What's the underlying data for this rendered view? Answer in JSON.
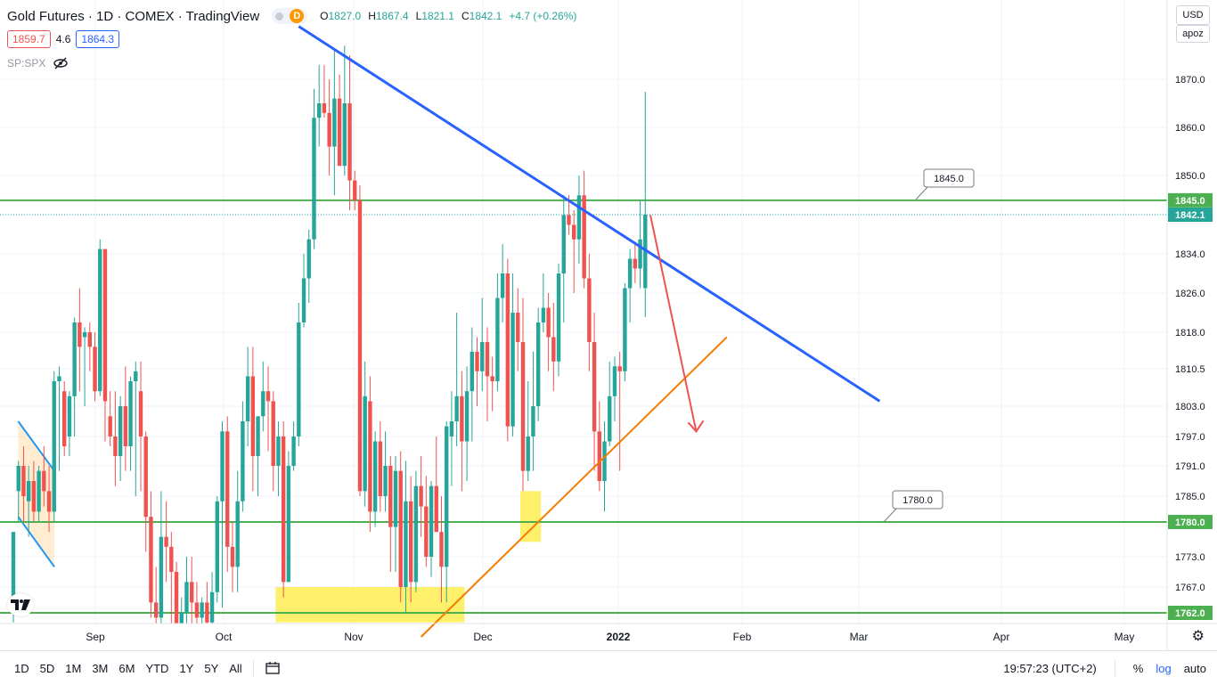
{
  "header": {
    "title": "Gold Futures · 1D · COMEX · TradingView",
    "market_badge": "D",
    "ohlc": [
      {
        "k": "O",
        "v": "1827.0"
      },
      {
        "k": "H",
        "v": "1867.4"
      },
      {
        "k": "L",
        "v": "1821.1"
      },
      {
        "k": "C",
        "v": "1842.1"
      },
      {
        "k": "",
        "v": "+4.7 (+0.26%)"
      }
    ],
    "sell": "1859.7",
    "spread": "4.6",
    "buy": "1864.3",
    "compare_symbol": "SP:SPX"
  },
  "toolbar_right": {
    "currency": "USD",
    "scale_mode": "apoz"
  },
  "bottom": {
    "ranges": [
      "1D",
      "5D",
      "1M",
      "3M",
      "6M",
      "YTD",
      "1Y",
      "5Y",
      "All"
    ],
    "time": "19:57:23 (UTC+2)",
    "percent": "%",
    "log": "log",
    "auto": "auto"
  },
  "chart_data": {
    "type": "candlestick",
    "y_ticks": [
      1870.0,
      1860.0,
      1850.0,
      1842.1,
      1834.0,
      1826.0,
      1818.0,
      1810.5,
      1803.0,
      1797.0,
      1791.0,
      1785.0,
      1780.0,
      1773.0,
      1767.0,
      1762.0
    ],
    "x_ticks": [
      "Sep",
      "Oct",
      "Nov",
      "Dec",
      "2022",
      "Feb",
      "Mar",
      "Apr",
      "May"
    ],
    "ylim": [
      1760,
      1880
    ],
    "price_labels": [
      {
        "value": 1845.0,
        "text": "1845.0",
        "color": "#4caf50"
      },
      {
        "value": 1842.1,
        "text": "1842.1",
        "color": "#26a69a"
      },
      {
        "value": 1780.0,
        "text": "1780.0",
        "color": "#4caf50"
      },
      {
        "value": 1762.0,
        "text": "1762.0",
        "color": "#4caf50"
      }
    ],
    "annotations": [
      {
        "text": "1845.0",
        "price": 1845.0
      },
      {
        "text": "1780.0",
        "price": 1780.0
      }
    ],
    "horizontal_levels": [
      1845.0,
      1780.0,
      1762.0
    ],
    "candles": [
      {
        "o": 1765,
        "h": 1778,
        "l": 1760,
        "c": 1778
      },
      {
        "o": 1786,
        "h": 1792,
        "l": 1780,
        "c": 1791
      },
      {
        "o": 1791,
        "h": 1795,
        "l": 1780,
        "c": 1785
      },
      {
        "o": 1784,
        "h": 1791,
        "l": 1777,
        "c": 1788
      },
      {
        "o": 1788,
        "h": 1792,
        "l": 1780,
        "c": 1782
      },
      {
        "o": 1782,
        "h": 1791,
        "l": 1780,
        "c": 1790
      },
      {
        "o": 1790,
        "h": 1795,
        "l": 1783,
        "c": 1786
      },
      {
        "o": 1786,
        "h": 1791,
        "l": 1778,
        "c": 1782
      },
      {
        "o": 1782,
        "h": 1810,
        "l": 1780,
        "c": 1808
      },
      {
        "o": 1808,
        "h": 1811,
        "l": 1790,
        "c": 1809
      },
      {
        "o": 1806,
        "h": 1808,
        "l": 1793,
        "c": 1795
      },
      {
        "o": 1797,
        "h": 1806,
        "l": 1793,
        "c": 1805
      },
      {
        "o": 1805,
        "h": 1821,
        "l": 1797,
        "c": 1820
      },
      {
        "o": 1820,
        "h": 1827,
        "l": 1806,
        "c": 1815
      },
      {
        "o": 1817,
        "h": 1819,
        "l": 1803,
        "c": 1818
      },
      {
        "o": 1818,
        "h": 1820,
        "l": 1810,
        "c": 1815
      },
      {
        "o": 1815,
        "h": 1818,
        "l": 1804,
        "c": 1806
      },
      {
        "o": 1806,
        "h": 1837,
        "l": 1805,
        "c": 1835
      },
      {
        "o": 1835,
        "h": 1835,
        "l": 1796,
        "c": 1804
      },
      {
        "o": 1801,
        "h": 1806,
        "l": 1795,
        "c": 1797
      },
      {
        "o": 1797,
        "h": 1806,
        "l": 1787,
        "c": 1793
      },
      {
        "o": 1793,
        "h": 1805,
        "l": 1788,
        "c": 1803
      },
      {
        "o": 1803,
        "h": 1811,
        "l": 1790,
        "c": 1795
      },
      {
        "o": 1795,
        "h": 1809,
        "l": 1790,
        "c": 1808
      },
      {
        "o": 1808,
        "h": 1812,
        "l": 1785,
        "c": 1810
      },
      {
        "o": 1806,
        "h": 1812,
        "l": 1786,
        "c": 1797
      },
      {
        "o": 1797,
        "h": 1798,
        "l": 1774,
        "c": 1781
      },
      {
        "o": 1781,
        "h": 1786,
        "l": 1761,
        "c": 1764
      },
      {
        "o": 1764,
        "h": 1771,
        "l": 1757,
        "c": 1761
      },
      {
        "o": 1761,
        "h": 1786,
        "l": 1758,
        "c": 1777
      },
      {
        "o": 1777,
        "h": 1784,
        "l": 1768,
        "c": 1775
      },
      {
        "o": 1775,
        "h": 1778,
        "l": 1757,
        "c": 1770
      },
      {
        "o": 1770,
        "h": 1772,
        "l": 1755,
        "c": 1758
      },
      {
        "o": 1758,
        "h": 1765,
        "l": 1750,
        "c": 1762
      },
      {
        "o": 1762,
        "h": 1773,
        "l": 1758,
        "c": 1768
      },
      {
        "o": 1768,
        "h": 1773,
        "l": 1758,
        "c": 1764
      },
      {
        "o": 1764,
        "h": 1768,
        "l": 1755,
        "c": 1761
      },
      {
        "o": 1761,
        "h": 1765,
        "l": 1755,
        "c": 1764
      },
      {
        "o": 1764,
        "h": 1768,
        "l": 1756,
        "c": 1760
      },
      {
        "o": 1760,
        "h": 1770,
        "l": 1758,
        "c": 1766
      },
      {
        "o": 1766,
        "h": 1785,
        "l": 1764,
        "c": 1784
      },
      {
        "o": 1784,
        "h": 1800,
        "l": 1763,
        "c": 1798
      },
      {
        "o": 1798,
        "h": 1801,
        "l": 1770,
        "c": 1775
      },
      {
        "o": 1775,
        "h": 1780,
        "l": 1766,
        "c": 1771
      },
      {
        "o": 1771,
        "h": 1790,
        "l": 1766,
        "c": 1784
      },
      {
        "o": 1784,
        "h": 1804,
        "l": 1782,
        "c": 1800
      },
      {
        "o": 1800,
        "h": 1815,
        "l": 1795,
        "c": 1809
      },
      {
        "o": 1809,
        "h": 1815,
        "l": 1786,
        "c": 1793
      },
      {
        "o": 1793,
        "h": 1801,
        "l": 1785,
        "c": 1801
      },
      {
        "o": 1801,
        "h": 1812,
        "l": 1798,
        "c": 1806
      },
      {
        "o": 1806,
        "h": 1811,
        "l": 1794,
        "c": 1804
      },
      {
        "o": 1804,
        "h": 1806,
        "l": 1786,
        "c": 1791
      },
      {
        "o": 1791,
        "h": 1800,
        "l": 1785,
        "c": 1797
      },
      {
        "o": 1797,
        "h": 1800,
        "l": 1765,
        "c": 1768
      },
      {
        "o": 1768,
        "h": 1794,
        "l": 1768,
        "c": 1791
      },
      {
        "o": 1791,
        "h": 1800,
        "l": 1790,
        "c": 1797
      },
      {
        "o": 1797,
        "h": 1824,
        "l": 1795,
        "c": 1820
      },
      {
        "o": 1820,
        "h": 1834,
        "l": 1819,
        "c": 1829
      },
      {
        "o": 1829,
        "h": 1839,
        "l": 1824,
        "c": 1837
      },
      {
        "o": 1837,
        "h": 1868,
        "l": 1835,
        "c": 1862
      },
      {
        "o": 1862,
        "h": 1873,
        "l": 1856,
        "c": 1865
      },
      {
        "o": 1865,
        "h": 1873,
        "l": 1862,
        "c": 1863
      },
      {
        "o": 1863,
        "h": 1870,
        "l": 1850,
        "c": 1856
      },
      {
        "o": 1856,
        "h": 1876,
        "l": 1846,
        "c": 1866
      },
      {
        "o": 1866,
        "h": 1871,
        "l": 1853,
        "c": 1852
      },
      {
        "o": 1852,
        "h": 1877,
        "l": 1850,
        "c": 1865
      },
      {
        "o": 1865,
        "h": 1875,
        "l": 1843,
        "c": 1849
      },
      {
        "o": 1849,
        "h": 1851,
        "l": 1843,
        "c": 1845
      },
      {
        "o": 1845,
        "h": 1848,
        "l": 1785,
        "c": 1786
      },
      {
        "o": 1786,
        "h": 1812,
        "l": 1783,
        "c": 1805
      },
      {
        "o": 1804,
        "h": 1809,
        "l": 1778,
        "c": 1782
      },
      {
        "o": 1782,
        "h": 1798,
        "l": 1779,
        "c": 1796
      },
      {
        "o": 1796,
        "h": 1800,
        "l": 1782,
        "c": 1785
      },
      {
        "o": 1785,
        "h": 1798,
        "l": 1782,
        "c": 1791
      },
      {
        "o": 1791,
        "h": 1793,
        "l": 1770,
        "c": 1779
      },
      {
        "o": 1779,
        "h": 1793,
        "l": 1770,
        "c": 1790
      },
      {
        "o": 1790,
        "h": 1794,
        "l": 1764,
        "c": 1767
      },
      {
        "o": 1767,
        "h": 1792,
        "l": 1762,
        "c": 1784
      },
      {
        "o": 1784,
        "h": 1789,
        "l": 1764,
        "c": 1768
      },
      {
        "o": 1768,
        "h": 1790,
        "l": 1766,
        "c": 1787
      },
      {
        "o": 1787,
        "h": 1793,
        "l": 1777,
        "c": 1783
      },
      {
        "o": 1783,
        "h": 1789,
        "l": 1771,
        "c": 1773
      },
      {
        "o": 1773,
        "h": 1788,
        "l": 1769,
        "c": 1787
      },
      {
        "o": 1787,
        "h": 1797,
        "l": 1778,
        "c": 1778
      },
      {
        "o": 1778,
        "h": 1785,
        "l": 1764,
        "c": 1771
      },
      {
        "o": 1771,
        "h": 1800,
        "l": 1764,
        "c": 1799
      },
      {
        "o": 1797,
        "h": 1806,
        "l": 1787,
        "c": 1800
      },
      {
        "o": 1800,
        "h": 1822,
        "l": 1795,
        "c": 1805
      },
      {
        "o": 1805,
        "h": 1810,
        "l": 1786,
        "c": 1796
      },
      {
        "o": 1796,
        "h": 1811,
        "l": 1788,
        "c": 1806
      },
      {
        "o": 1806,
        "h": 1819,
        "l": 1796,
        "c": 1814
      },
      {
        "o": 1814,
        "h": 1817,
        "l": 1803,
        "c": 1810
      },
      {
        "o": 1810,
        "h": 1825,
        "l": 1806,
        "c": 1816
      },
      {
        "o": 1816,
        "h": 1819,
        "l": 1800,
        "c": 1809
      },
      {
        "o": 1809,
        "h": 1813,
        "l": 1802,
        "c": 1808
      },
      {
        "o": 1808,
        "h": 1830,
        "l": 1806,
        "c": 1825
      },
      {
        "o": 1825,
        "h": 1836,
        "l": 1820,
        "c": 1830
      },
      {
        "o": 1830,
        "h": 1833,
        "l": 1796,
        "c": 1799
      },
      {
        "o": 1799,
        "h": 1830,
        "l": 1797,
        "c": 1822
      },
      {
        "o": 1822,
        "h": 1827,
        "l": 1810,
        "c": 1816
      },
      {
        "o": 1816,
        "h": 1825,
        "l": 1786,
        "c": 1790
      },
      {
        "o": 1790,
        "h": 1808,
        "l": 1788,
        "c": 1797
      },
      {
        "o": 1797,
        "h": 1814,
        "l": 1790,
        "c": 1803
      },
      {
        "o": 1803,
        "h": 1823,
        "l": 1800,
        "c": 1820
      },
      {
        "o": 1820,
        "h": 1830,
        "l": 1818,
        "c": 1823
      },
      {
        "o": 1823,
        "h": 1826,
        "l": 1810,
        "c": 1817
      },
      {
        "o": 1817,
        "h": 1824,
        "l": 1806,
        "c": 1812
      },
      {
        "o": 1812,
        "h": 1832,
        "l": 1809,
        "c": 1830
      },
      {
        "o": 1830,
        "h": 1846,
        "l": 1820,
        "c": 1842
      },
      {
        "o": 1842,
        "h": 1846,
        "l": 1838,
        "c": 1840
      },
      {
        "o": 1840,
        "h": 1843,
        "l": 1826,
        "c": 1837
      },
      {
        "o": 1837,
        "h": 1850,
        "l": 1832,
        "c": 1846
      },
      {
        "o": 1846,
        "h": 1851,
        "l": 1827,
        "c": 1829
      },
      {
        "o": 1829,
        "h": 1834,
        "l": 1810,
        "c": 1816
      },
      {
        "o": 1816,
        "h": 1822,
        "l": 1790,
        "c": 1798
      },
      {
        "o": 1798,
        "h": 1804,
        "l": 1786,
        "c": 1788
      },
      {
        "o": 1788,
        "h": 1800,
        "l": 1782,
        "c": 1796
      },
      {
        "o": 1796,
        "h": 1812,
        "l": 1795,
        "c": 1805
      },
      {
        "o": 1805,
        "h": 1813,
        "l": 1800,
        "c": 1811
      },
      {
        "o": 1811,
        "h": 1814,
        "l": 1790,
        "c": 1810
      },
      {
        "o": 1810,
        "h": 1828,
        "l": 1808,
        "c": 1827
      },
      {
        "o": 1827,
        "h": 1835,
        "l": 1820,
        "c": 1833
      },
      {
        "o": 1833,
        "h": 1836,
        "l": 1828,
        "c": 1831
      },
      {
        "o": 1831,
        "h": 1845,
        "l": 1827,
        "c": 1837
      },
      {
        "o": 1827,
        "h": 1867.4,
        "l": 1821.1,
        "c": 1842.1
      }
    ],
    "trendlines": [
      {
        "name": "resistance",
        "color": "#2962ff",
        "points": [
          {
            "i": 56,
            "p": 1881
          },
          {
            "i": 170,
            "p": 1804
          }
        ]
      },
      {
        "name": "support",
        "color": "#f57c00",
        "points": [
          {
            "i": 80,
            "p": 1757
          },
          {
            "i": 140,
            "p": 1817
          }
        ]
      }
    ],
    "arrow": {
      "color": "#ef5350",
      "from": {
        "i": 125,
        "p": 1842
      },
      "to": {
        "i": 134,
        "p": 1798
      }
    },
    "highlight_boxes": [
      {
        "i0": 52,
        "i1": 88,
        "p0": 1760,
        "p1": 1767
      },
      {
        "i0": 100,
        "i1": 103,
        "p0": 1776,
        "p1": 1786
      }
    ],
    "wedge": {
      "i0": 2,
      "i1": 7,
      "top0": 1800,
      "top1": 1790,
      "bot0": 1781,
      "bot1": 1771
    }
  }
}
